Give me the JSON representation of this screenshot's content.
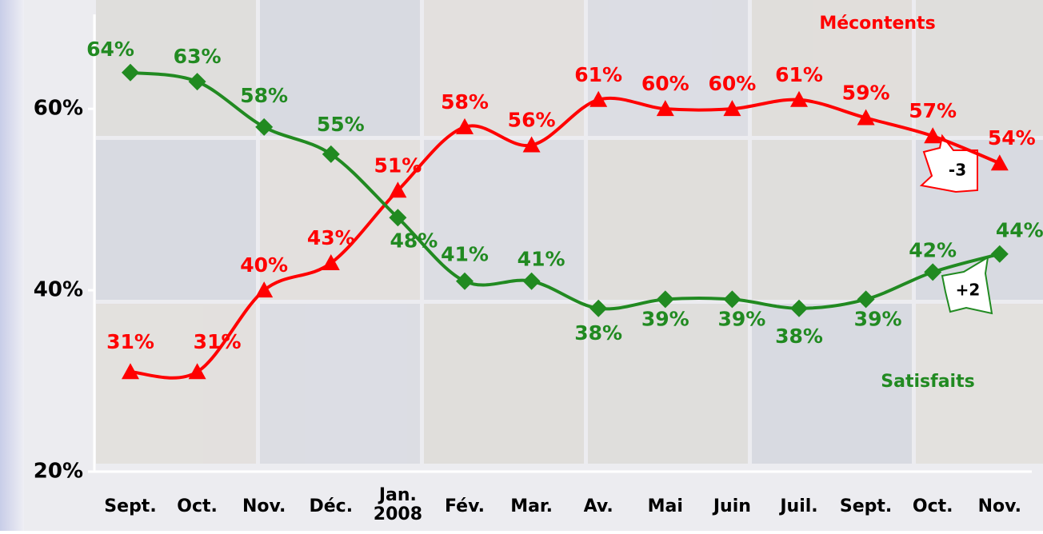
{
  "chart_data": {
    "type": "line",
    "categories": [
      "Sept.",
      "Oct.",
      "Nov.",
      "Déc.",
      "Jan.\n2008",
      "Fév.",
      "Mar.",
      "Av.",
      "Mai",
      "Juin",
      "Juil.",
      "Sept.",
      "Oct.",
      "Nov."
    ],
    "series": [
      {
        "name": "Mécontents",
        "color": "#ff0000",
        "marker": "triangle",
        "values": [
          31,
          31,
          40,
          43,
          51,
          58,
          56,
          61,
          60,
          60,
          61,
          59,
          57,
          54
        ],
        "value_labels": [
          "31%",
          "31%",
          "40%",
          "43%",
          "51%",
          "58%",
          "56%",
          "61%",
          "60%",
          "60%",
          "61%",
          "59%",
          "57%",
          "54%"
        ]
      },
      {
        "name": "Satisfaits",
        "color": "#218a21",
        "marker": "diamond",
        "values": [
          64,
          63,
          58,
          55,
          48,
          41,
          41,
          38,
          39,
          39,
          38,
          39,
          42,
          44
        ],
        "value_labels": [
          "64%",
          "63%",
          "58%",
          "55%",
          "48%",
          "41%",
          "41%",
          "38%",
          "39%",
          "39%",
          "38%",
          "39%",
          "42%",
          "44%"
        ]
      }
    ],
    "annotations": [
      "-3",
      "+2"
    ],
    "ylim": [
      20,
      72
    ],
    "yticks": [
      {
        "value": 20,
        "label": "20%"
      },
      {
        "value": 40,
        "label": "40%"
      },
      {
        "value": 60,
        "label": "60%"
      }
    ],
    "grid": false
  }
}
